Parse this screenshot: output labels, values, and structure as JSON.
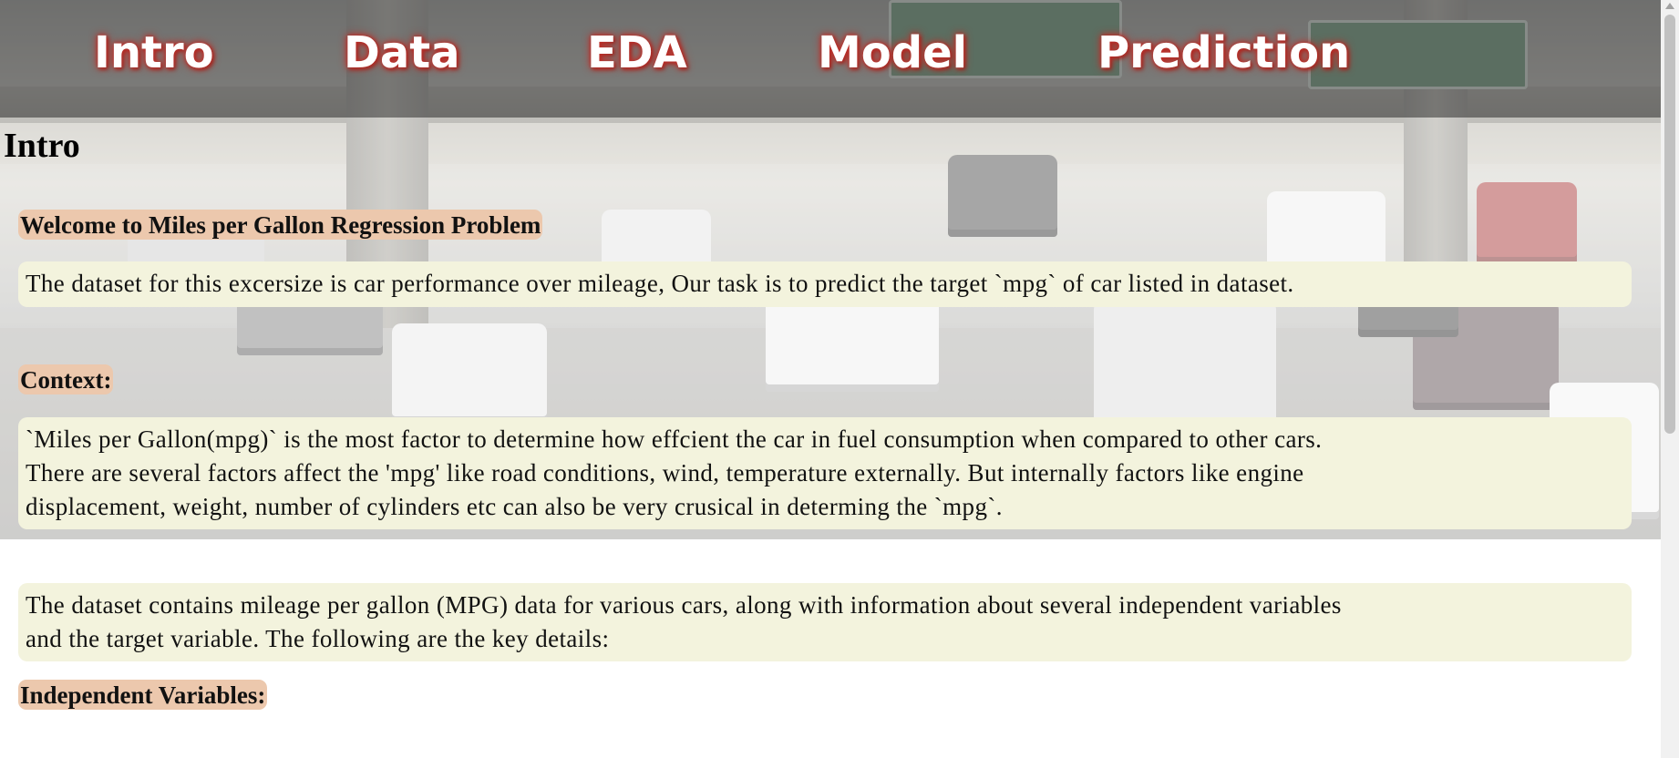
{
  "nav": {
    "items": [
      {
        "label": "Intro"
      },
      {
        "label": "Data"
      },
      {
        "label": "EDA"
      },
      {
        "label": "Model"
      },
      {
        "label": "Prediction"
      }
    ]
  },
  "main": {
    "title": "Intro",
    "welcome_label": "Welcome to Miles per Gallon Regression Problem",
    "welcome_text": "The dataset for this excersize is car performance over mileage, Our task is to predict the target `mpg` of car listed in dataset.",
    "context_label": "Context:",
    "context_text_1": "`Miles per Gallon(mpg)` is the most factor to determine how effcient the car in fuel consumption when compared to other cars.",
    "context_text_2": "There are several factors affect the 'mpg' like road conditions, wind, temperature externally. But internally factors like engine",
    "context_text_3": "displacement, weight, number of cylinders etc can also be very crusical in determing the `mpg`.",
    "dataset_text_1": "The dataset contains mileage per gallon (MPG) data for various cars, along with information about several independent variables",
    "dataset_text_2": "and the target variable. The following are the key details:",
    "independent_label": "Independent Variables:"
  },
  "colors": {
    "label_bg": "#ecc8ad",
    "box_bg": "#f3f3dd",
    "nav_glow": "#c0302a"
  }
}
